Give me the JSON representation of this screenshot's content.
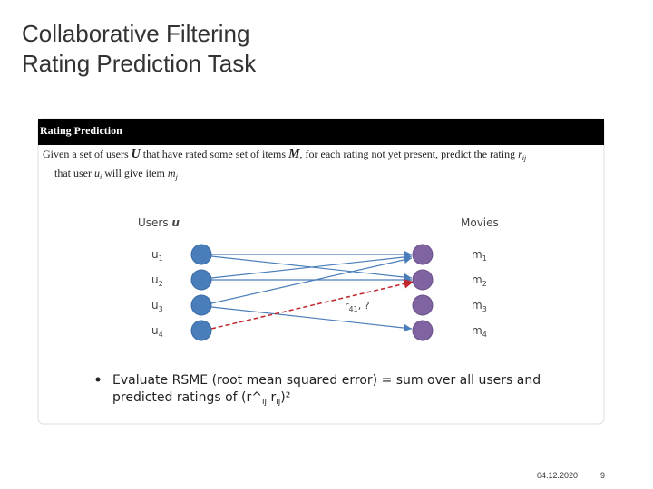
{
  "header": {
    "title_lines": [
      "Collaborative Filtering",
      "Rating Prediction Task"
    ]
  },
  "box": {
    "heading": "Rating Prediction",
    "description": {
      "line1": [
        "Given a set of users ",
        "U",
        " that have rated some set of items ",
        "M",
        ", for each rating not yet present, predict the rating ",
        "r",
        "ij"
      ],
      "line2": [
        "that user ",
        "u",
        "i",
        " will give item ",
        "m",
        "j"
      ]
    },
    "diagram": {
      "users_label": [
        "Users ",
        "u"
      ],
      "movies_label": "Movies",
      "users": [
        {
          "base": "u",
          "sub": "1"
        },
        {
          "base": "u",
          "sub": "2"
        },
        {
          "base": "u",
          "sub": "3"
        },
        {
          "base": "u",
          "sub": "4"
        }
      ],
      "movies": [
        {
          "base": "m",
          "sub": "1"
        },
        {
          "base": "m",
          "sub": "2"
        },
        {
          "base": "m",
          "sub": "3"
        },
        {
          "base": "m",
          "sub": "4"
        }
      ],
      "missing_rating": {
        "base": "r",
        "sub": "41",
        "suffix": ", ?"
      }
    },
    "bullet": {
      "line1": "Evaluate RSME (root mean squared error) = sum over all users and",
      "line2": [
        "predicted ratings of (r^",
        "ij",
        " r",
        "ij",
        ")²"
      ]
    }
  },
  "footer": {
    "date": "04.12.2020",
    "page": "9"
  }
}
